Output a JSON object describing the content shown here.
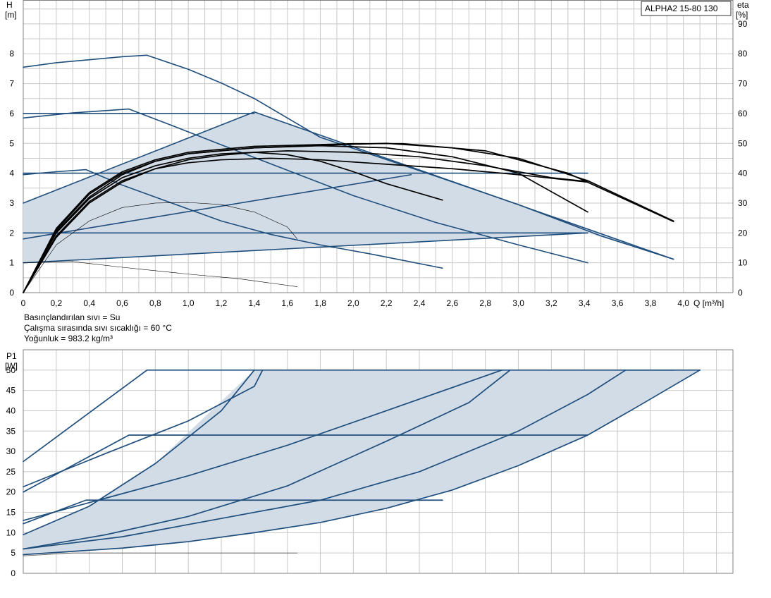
{
  "model_box": "ALPHA2 15-80 130",
  "notes": [
    "Basınçlandırılan sıvı = Su",
    "Çalışma sırasında sıvı sıcaklığı = 60 °C",
    "Yoğunluk = 983.2 kg/m³"
  ],
  "colors": {
    "grid": "#c8c8c8",
    "curve": "#1f4e7d",
    "eta": "#000000",
    "fill": "#d2dce7",
    "axis": "#808080"
  },
  "chart_data": [
    {
      "type": "line",
      "name": "head-chart",
      "y_label_top": "H",
      "y_label_unit": "[m]",
      "y2_label_top": "eta",
      "y2_label_unit": "[%]",
      "x_label": "Q [m³/h]",
      "xlim": [
        0,
        4.3
      ],
      "ylim": [
        0,
        9.8
      ],
      "y2lim": [
        0,
        98
      ],
      "x_ticks": [
        "0",
        "0,2",
        "0,4",
        "0,6",
        "0,8",
        "1,0",
        "1,2",
        "1,4",
        "1,6",
        "1,8",
        "2,0",
        "2,2",
        "2,4",
        "2,6",
        "2,8",
        "3,0",
        "3,2",
        "3,4",
        "3,6",
        "3,8",
        "4,0"
      ],
      "x_tick_values": [
        0,
        0.2,
        0.4,
        0.6,
        0.8,
        1.0,
        1.2,
        1.4,
        1.6,
        1.8,
        2.0,
        2.2,
        2.4,
        2.6,
        2.8,
        3.0,
        3.2,
        3.4,
        3.6,
        3.8,
        4.0
      ],
      "y_ticks": [
        0,
        1,
        2,
        3,
        4,
        5,
        6,
        7,
        8
      ],
      "y2_ticks": [
        0,
        10,
        20,
        30,
        40,
        50,
        60,
        70,
        80,
        90
      ],
      "grid": true,
      "region": [
        [
          0,
          1.0
        ],
        [
          0,
          3.0
        ],
        [
          1.4,
          6.05
        ],
        [
          3.94,
          1.12
        ],
        [
          3.42,
          2.0
        ],
        [
          0,
          1.0
        ]
      ],
      "series": [
        {
          "kind": "head",
          "points": [
            [
              0,
              7.55
            ],
            [
              0.2,
              7.7
            ],
            [
              0.4,
              7.8
            ],
            [
              0.6,
              7.9
            ],
            [
              0.75,
              7.95
            ],
            [
              1.0,
              7.48
            ],
            [
              1.2,
              7.02
            ],
            [
              1.4,
              6.5
            ],
            [
              1.8,
              5.2
            ],
            [
              2.5,
              3.9
            ],
            [
              3.0,
              2.95
            ],
            [
              3.5,
              1.9
            ],
            [
              3.94,
              1.12
            ]
          ]
        },
        {
          "kind": "head",
          "points": [
            [
              0,
              5.85
            ],
            [
              0.3,
              6.02
            ],
            [
              0.64,
              6.15
            ],
            [
              0.9,
              5.6
            ],
            [
              1.2,
              4.95
            ],
            [
              1.6,
              4.1
            ],
            [
              2.0,
              3.25
            ],
            [
              2.5,
              2.35
            ],
            [
              3.0,
              1.6
            ],
            [
              3.42,
              1.0
            ]
          ]
        },
        {
          "kind": "head",
          "points": [
            [
              0,
              3.95
            ],
            [
              0.2,
              4.05
            ],
            [
              0.38,
              4.12
            ],
            [
              0.6,
              3.6
            ],
            [
              0.9,
              3.0
            ],
            [
              1.2,
              2.4
            ],
            [
              1.5,
              1.95
            ],
            [
              1.8,
              1.6
            ],
            [
              2.1,
              1.3
            ],
            [
              2.54,
              0.82
            ]
          ]
        },
        {
          "kind": "head",
          "points": [
            [
              0,
              6.0
            ],
            [
              1.4,
              6.0
            ]
          ]
        },
        {
          "kind": "head",
          "points": [
            [
              0,
              4.0
            ],
            [
              3.42,
              4.0
            ]
          ]
        },
        {
          "kind": "head",
          "points": [
            [
              0,
              2.0
            ],
            [
              3.42,
              2.0
            ]
          ]
        },
        {
          "kind": "head",
          "points": [
            [
              0,
              3.0
            ],
            [
              1.4,
              6.05
            ]
          ]
        },
        {
          "kind": "head",
          "points": [
            [
              0,
              1.8
            ],
            [
              2.35,
              3.95
            ]
          ]
        },
        {
          "kind": "head",
          "points": [
            [
              0,
              1.0
            ],
            [
              3.42,
              2.0
            ]
          ]
        },
        {
          "kind": "head",
          "points": [
            [
              1.4,
              6.05
            ],
            [
              3.94,
              1.12
            ]
          ]
        },
        {
          "kind": "eta-thin",
          "points": [
            [
              0,
              1.0
            ],
            [
              0.3,
              1.04
            ],
            [
              0.6,
              0.85
            ],
            [
              1.0,
              0.62
            ],
            [
              1.3,
              0.47
            ],
            [
              1.66,
              0.2
            ]
          ]
        },
        {
          "kind": "eta-thin",
          "points": [
            [
              0,
              0
            ],
            [
              0.2,
              1.6
            ],
            [
              0.4,
              2.4
            ],
            [
              0.6,
              2.85
            ],
            [
              0.8,
              3.0
            ],
            [
              1.0,
              3.02
            ],
            [
              1.2,
              2.95
            ],
            [
              1.4,
              2.7
            ],
            [
              1.6,
              2.2
            ],
            [
              1.66,
              1.8
            ]
          ]
        },
        {
          "kind": "eta",
          "points": [
            [
              0,
              0
            ],
            [
              0.2,
              1.85
            ],
            [
              0.4,
              3.0
            ],
            [
              0.6,
              3.7
            ],
            [
              0.8,
              4.15
            ],
            [
              1.0,
              4.45
            ],
            [
              1.2,
              4.6
            ],
            [
              1.4,
              4.7
            ],
            [
              1.6,
              4.62
            ],
            [
              1.8,
              4.4
            ],
            [
              2.0,
              4.05
            ],
            [
              2.2,
              3.65
            ],
            [
              2.54,
              3.1
            ]
          ]
        },
        {
          "kind": "eta",
          "points": [
            [
              0,
              0
            ],
            [
              0.2,
              1.9
            ],
            [
              0.4,
              3.05
            ],
            [
              0.6,
              3.75
            ],
            [
              0.8,
              4.15
            ],
            [
              1.0,
              4.35
            ],
            [
              1.2,
              4.45
            ],
            [
              1.5,
              4.5
            ],
            [
              1.8,
              4.45
            ],
            [
              2.2,
              4.3
            ],
            [
              2.6,
              4.15
            ],
            [
              3.0,
              3.95
            ],
            [
              3.42,
              3.7
            ]
          ]
        },
        {
          "kind": "eta",
          "points": [
            [
              0,
              0
            ],
            [
              0.2,
              2.0
            ],
            [
              0.4,
              3.15
            ],
            [
              0.6,
              3.85
            ],
            [
              0.8,
              4.25
            ],
            [
              1.0,
              4.5
            ],
            [
              1.2,
              4.65
            ],
            [
              1.6,
              4.75
            ],
            [
              2.0,
              4.7
            ],
            [
              2.4,
              4.55
            ],
            [
              2.8,
              4.25
            ],
            [
              3.2,
              3.85
            ],
            [
              3.42,
              3.72
            ]
          ]
        },
        {
          "kind": "eta",
          "points": [
            [
              0,
              0
            ],
            [
              0.2,
              2.05
            ],
            [
              0.4,
              3.2
            ],
            [
              0.6,
              3.95
            ],
            [
              0.8,
              4.4
            ],
            [
              1.0,
              4.65
            ],
            [
              1.4,
              4.85
            ],
            [
              1.8,
              4.92
            ],
            [
              2.2,
              4.85
            ],
            [
              2.6,
              4.55
            ],
            [
              3.0,
              4.0
            ],
            [
              3.42,
              2.7
            ]
          ]
        },
        {
          "kind": "eta",
          "points": [
            [
              0,
              0
            ],
            [
              0.2,
              2.1
            ],
            [
              0.4,
              3.3
            ],
            [
              0.6,
              4.0
            ],
            [
              0.8,
              4.4
            ],
            [
              1.0,
              4.65
            ],
            [
              1.4,
              4.85
            ],
            [
              2.0,
              4.97
            ],
            [
              2.2,
              5.0
            ],
            [
              2.6,
              4.85
            ],
            [
              3.0,
              4.5
            ],
            [
              3.42,
              3.75
            ],
            [
              3.94,
              2.4
            ]
          ]
        },
        {
          "kind": "eta",
          "points": [
            [
              0,
              0
            ],
            [
              0.2,
              2.15
            ],
            [
              0.4,
              3.35
            ],
            [
              0.6,
              4.05
            ],
            [
              0.8,
              4.45
            ],
            [
              1.0,
              4.7
            ],
            [
              1.4,
              4.9
            ],
            [
              2.0,
              4.99
            ],
            [
              2.3,
              4.99
            ],
            [
              2.8,
              4.75
            ],
            [
              3.3,
              4.0
            ],
            [
              3.94,
              2.38
            ]
          ]
        }
      ]
    },
    {
      "type": "line",
      "name": "power-chart",
      "y_label_top": "P1",
      "y_label_unit": "[W]",
      "xlim": [
        0,
        4.3
      ],
      "ylim": [
        0,
        55
      ],
      "y_ticks": [
        0,
        5,
        10,
        15,
        20,
        25,
        30,
        35,
        40,
        45,
        50
      ],
      "grid": true,
      "region": [
        [
          0,
          4.6
        ],
        [
          0.6,
          6.2
        ],
        [
          1.0,
          7.8
        ],
        [
          1.4,
          10.0
        ],
        [
          1.8,
          12.5
        ],
        [
          2.2,
          16.0
        ],
        [
          2.6,
          20.5
        ],
        [
          3.0,
          26.5
        ],
        [
          3.42,
          34.0
        ],
        [
          3.7,
          40.5
        ],
        [
          4.1,
          50.0
        ],
        [
          1.4,
          50.0
        ],
        [
          0.8,
          27.0
        ],
        [
          0.4,
          16.5
        ],
        [
          0,
          9.5
        ],
        [
          0,
          4.6
        ]
      ],
      "series": [
        {
          "points": [
            [
              0,
              27.5
            ],
            [
              0.75,
              50.0
            ],
            [
              3.94,
              50.0
            ]
          ]
        },
        {
          "points": [
            [
              0,
              21.3
            ],
            [
              0.5,
              29.5
            ],
            [
              1.0,
              37.5
            ],
            [
              1.4,
              46.0
            ],
            [
              1.45,
              50.0
            ]
          ]
        },
        {
          "points": [
            [
              0,
              20.0
            ],
            [
              0.64,
              34.0
            ],
            [
              3.42,
              34.0
            ]
          ]
        },
        {
          "points": [
            [
              0,
              12.2
            ],
            [
              0.38,
              18.0
            ],
            [
              2.54,
              18.0
            ]
          ]
        },
        {
          "points": [
            [
              0,
              9.5
            ],
            [
              0.4,
              16.5
            ],
            [
              0.8,
              27.0
            ],
            [
              1.2,
              40.0
            ],
            [
              1.4,
              50.0
            ]
          ]
        },
        {
          "points": [
            [
              0,
              13.0
            ],
            [
              0.5,
              18.5
            ],
            [
              1.0,
              24.0
            ],
            [
              1.6,
              31.5
            ],
            [
              2.2,
              40.0
            ],
            [
              2.9,
              50.0
            ]
          ]
        },
        {
          "points": [
            [
              0,
              6.0
            ],
            [
              0.5,
              9.5
            ],
            [
              1.0,
              14.0
            ],
            [
              1.6,
              21.5
            ],
            [
              2.2,
              32.5
            ],
            [
              2.7,
              42.0
            ],
            [
              2.95,
              50.0
            ]
          ]
        },
        {
          "points": [
            [
              0,
              6.0
            ],
            [
              0.6,
              9.0
            ],
            [
              1.2,
              13.5
            ],
            [
              1.8,
              18.0
            ],
            [
              2.4,
              25.0
            ],
            [
              3.0,
              35.0
            ],
            [
              3.42,
              44.0
            ],
            [
              3.65,
              50.0
            ]
          ]
        },
        {
          "points": [
            [
              0,
              4.6
            ],
            [
              0.6,
              6.2
            ],
            [
              1.0,
              7.8
            ],
            [
              1.4,
              10.0
            ],
            [
              1.8,
              12.5
            ],
            [
              2.2,
              16.0
            ],
            [
              2.6,
              20.5
            ],
            [
              3.0,
              26.5
            ],
            [
              3.42,
              34.0
            ],
            [
              3.7,
              40.5
            ],
            [
              4.1,
              50.0
            ]
          ]
        },
        {
          "points": [
            [
              3.65,
              50.0
            ],
            [
              4.1,
              50.0
            ]
          ]
        },
        {
          "kind": "thin",
          "points": [
            [
              0,
              4.3
            ],
            [
              0.3,
              5.0
            ],
            [
              1.66,
              5.0
            ]
          ]
        }
      ]
    }
  ]
}
